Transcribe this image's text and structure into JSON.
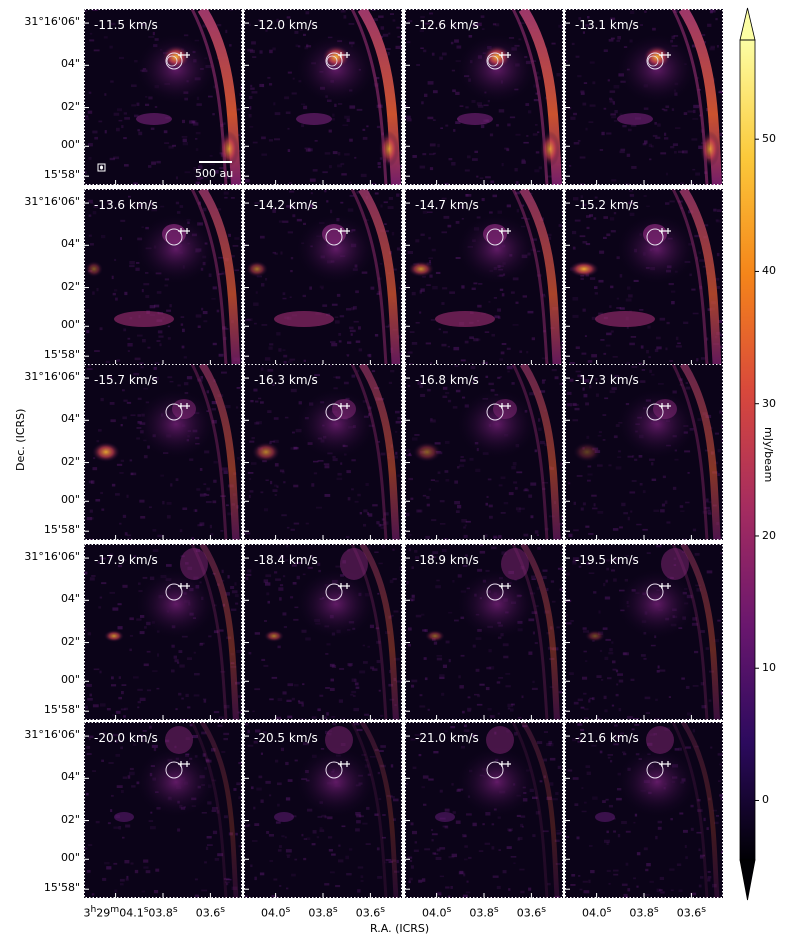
{
  "panel_velocities": [
    "-11.5 km/s",
    "-12.0 km/s",
    "-12.6 km/s",
    "-13.1 km/s",
    "-13.6 km/s",
    "-14.2 km/s",
    "-14.7 km/s",
    "-15.2 km/s",
    "-15.7 km/s",
    "-16.3 km/s",
    "-16.8 km/s",
    "-17.3 km/s",
    "-17.9 km/s",
    "-18.4 km/s",
    "-18.9 km/s",
    "-19.5 km/s",
    "-20.0 km/s",
    "-20.5 km/s",
    "-21.0 km/s",
    "-21.6 km/s"
  ],
  "axes": {
    "x_title": "R.A. (ICRS)",
    "y_title": "Dec. (ICRS)",
    "y_ticks": [
      "31°16'06\"",
      "04\"",
      "02\"",
      "00\"",
      "15'58\""
    ],
    "x_first_prefix": "3",
    "x_first_h": "h",
    "x_first_mid": "29",
    "x_first_m": "m",
    "x_first_val": "04.1",
    "x_first_s": "s",
    "x_ticks_first": [
      "03.8",
      "03.6"
    ],
    "x_ticks_other": [
      "04.0",
      "03.8",
      "03.6"
    ],
    "sec_sup": "s"
  },
  "scalebar_label": "500 au",
  "colorbar": {
    "label": "mJy/beam",
    "ticks": [
      "50",
      "40",
      "30",
      "20",
      "10",
      "0"
    ],
    "colormap": "inferno",
    "colors": [
      "#000004",
      "#2c0a5e",
      "#6a176e",
      "#a52c60",
      "#d8483c",
      "#f5851a",
      "#fbc93b",
      "#fcfea4"
    ]
  }
}
